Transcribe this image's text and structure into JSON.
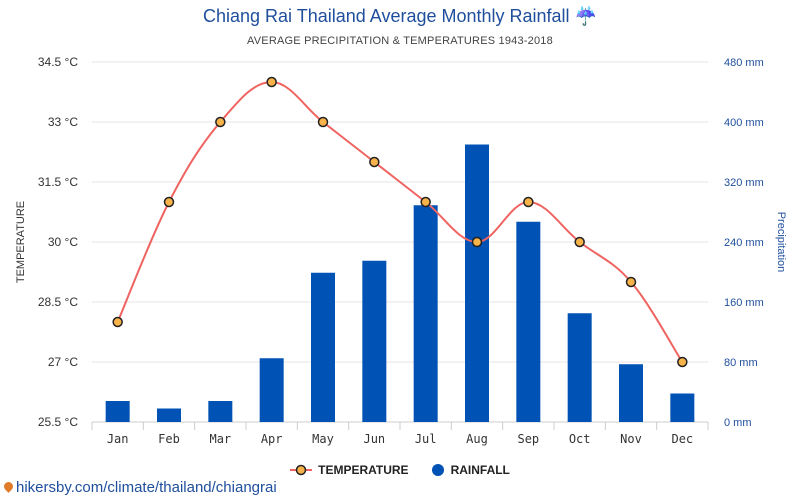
{
  "title": "Chiang Rai Thailand Average Monthly Rainfall ☔",
  "subtitle": "AVERAGE PRECIPITATION & TEMPERATURES 1943-2018",
  "source": "hikersby.com/climate/thailand/chiangrai",
  "legend": {
    "temperature": "TEMPERATURE",
    "rainfall": "RAINFALL"
  },
  "chart_data": {
    "type": "bar",
    "categories": [
      "Jan",
      "Feb",
      "Mar",
      "Apr",
      "May",
      "Jun",
      "Jul",
      "Aug",
      "Sep",
      "Oct",
      "Nov",
      "Dec"
    ],
    "series": [
      {
        "name": "TEMPERATURE",
        "type": "line",
        "axis": "left",
        "values": [
          28,
          31,
          33,
          34,
          33,
          32,
          31,
          30,
          31,
          30,
          29,
          27
        ],
        "color": "#ef6461"
      },
      {
        "name": "RAINFALL",
        "type": "bar",
        "axis": "right",
        "values": [
          28,
          18,
          28,
          85,
          199,
          215,
          289,
          370,
          267,
          145,
          77,
          38
        ],
        "color": "#0052b4"
      }
    ],
    "ylabel": "TEMPERATURE",
    "ylabel_right": "Precipitation",
    "ylim": [
      25.5,
      34.5
    ],
    "ylim_right": [
      0,
      480
    ],
    "yticks": [
      "25.5 °C",
      "27 °C",
      "28.5 °C",
      "30 °C",
      "31.5 °C",
      "33 °C",
      "34.5 °C"
    ],
    "yticks_right": [
      "0 mm",
      "80 mm",
      "160 mm",
      "240 mm",
      "320 mm",
      "400 mm",
      "480 mm"
    ],
    "grid": true,
    "legend_position": "bottom"
  }
}
